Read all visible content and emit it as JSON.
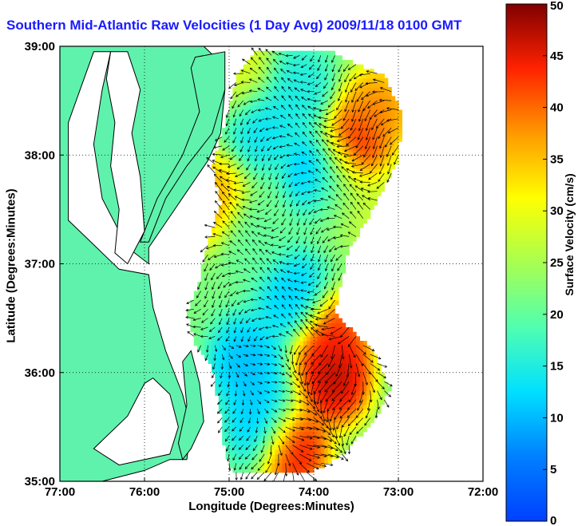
{
  "chart_data": {
    "type": "heatmap",
    "title": "Southern Mid-Atlantic Raw Velocities (1 Day Avg) 2009/11/18 0100 GMT",
    "xlabel": "Longitude (Degrees:Minutes)",
    "ylabel": "Latitude (Degrees:Minutes)",
    "xlim": [
      -77,
      -72
    ],
    "ylim": [
      35,
      39
    ],
    "x_ticks": [
      {
        "value": -77,
        "label": "77:00"
      },
      {
        "value": -76,
        "label": "76:00"
      },
      {
        "value": -75,
        "label": "75:00"
      },
      {
        "value": -74,
        "label": "74:00"
      },
      {
        "value": -73,
        "label": "73:00"
      },
      {
        "value": -72,
        "label": "72:00"
      }
    ],
    "y_ticks": [
      {
        "value": 39,
        "label": "39:00"
      },
      {
        "value": 38,
        "label": "38:00"
      },
      {
        "value": 37,
        "label": "37:00"
      },
      {
        "value": 36,
        "label": "36:00"
      },
      {
        "value": 35,
        "label": "35:00"
      }
    ],
    "grid": true,
    "colorbar": {
      "label": "Surface Velocity (cm/s)",
      "range": [
        0,
        50
      ],
      "ticks": [
        0,
        5,
        10,
        15,
        20,
        25,
        30,
        35,
        40,
        45,
        50
      ]
    },
    "coverage_polygon": [
      [
        -74.7,
        38.95
      ],
      [
        -73.8,
        38.95
      ],
      [
        -73.15,
        38.72
      ],
      [
        -72.95,
        38.35
      ],
      [
        -73.0,
        37.95
      ],
      [
        -73.3,
        37.5
      ],
      [
        -73.6,
        37.1
      ],
      [
        -73.75,
        36.55
      ],
      [
        -73.3,
        36.2
      ],
      [
        -73.1,
        35.85
      ],
      [
        -73.25,
        35.6
      ],
      [
        -73.65,
        35.25
      ],
      [
        -74.05,
        35.08
      ],
      [
        -74.95,
        35.08
      ],
      [
        -75.05,
        35.25
      ],
      [
        -75.1,
        35.6
      ],
      [
        -75.2,
        36.05
      ],
      [
        -75.4,
        36.25
      ],
      [
        -75.5,
        36.55
      ],
      [
        -75.35,
        36.85
      ],
      [
        -75.25,
        37.2
      ],
      [
        -75.1,
        37.55
      ],
      [
        -75.2,
        37.9
      ],
      [
        -75.05,
        38.3
      ],
      [
        -74.9,
        38.75
      ]
    ],
    "speed_features": [
      {
        "lon": -73.75,
        "lat": 35.95,
        "speed": 50
      },
      {
        "lon": -74.25,
        "lat": 35.3,
        "speed": 48
      },
      {
        "lon": -73.8,
        "lat": 36.3,
        "speed": 46
      },
      {
        "lon": -73.55,
        "lat": 38.05,
        "speed": 48
      },
      {
        "lon": -73.25,
        "lat": 38.4,
        "speed": 40
      },
      {
        "lon": -73.3,
        "lat": 37.5,
        "speed": 28
      },
      {
        "lon": -75.25,
        "lat": 37.6,
        "speed": 38
      },
      {
        "lon": -74.85,
        "lat": 38.75,
        "speed": 30
      },
      {
        "lon": -73.7,
        "lat": 37.65,
        "speed": 24
      },
      {
        "lon": -74.6,
        "lat": 38.3,
        "speed": 12
      },
      {
        "lon": -74.2,
        "lat": 38.6,
        "speed": 14
      },
      {
        "lon": -73.9,
        "lat": 37.85,
        "speed": 7
      },
      {
        "lon": -74.25,
        "lat": 36.7,
        "speed": 10
      },
      {
        "lon": -74.8,
        "lat": 36.1,
        "speed": 9
      },
      {
        "lon": -74.6,
        "lat": 35.55,
        "speed": 9
      },
      {
        "lon": -74.7,
        "lat": 37.2,
        "speed": 20
      }
    ],
    "base_speed": 22,
    "land_color": "#5ff2ad",
    "title_color": "#1a1aff"
  }
}
